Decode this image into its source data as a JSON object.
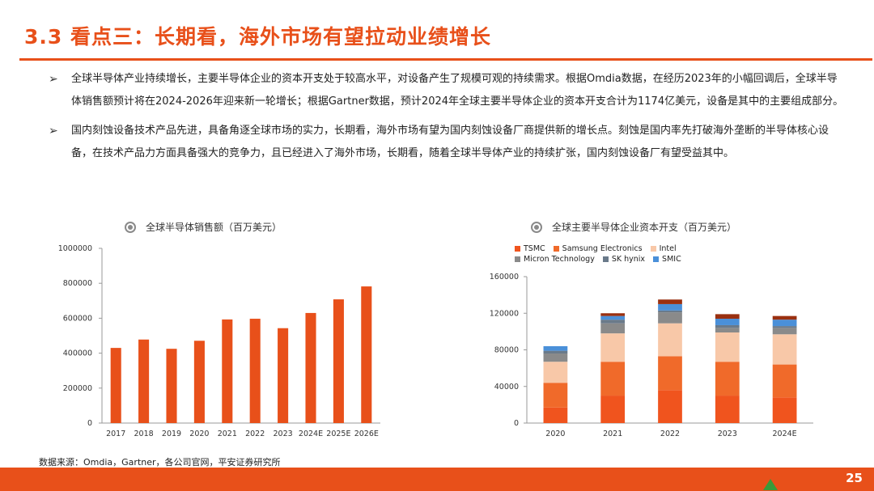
{
  "page": {
    "title": "3.3 看点三：长期看，海外市场有望拉动业绩增长",
    "page_number": "25",
    "source": "数据来源：Omdia，Gartner，各公司官网，平安证券研究所"
  },
  "bullets": [
    {
      "marker": "➢",
      "text": "全球半导体产业持续增长，主要半导体企业的资本开支处于较高水平，对设备产生了规模可观的持续需求。根据Omdia数据，在经历2023年的小幅回调后，全球半导体销售额预计将在2024-2026年迎来新一轮增长；根据Gartner数据，预计2024年全球主要半导体企业的资本开支合计为1174亿美元，设备是其中的主要组成部分。"
    },
    {
      "marker": "➢",
      "text": "国内刻蚀设备技术产品先进，具备角逐全球市场的实力，长期看，海外市场有望为国内刻蚀设备厂商提供新的增长点。刻蚀是国内率先打破海外垄断的半导体核心设备，在技术产品力方面具备强大的竞争力，且已经进入了海外市场，长期看，随着全球半导体产业的持续扩张，国内刻蚀设备厂有望受益其中。"
    }
  ],
  "colors": {
    "accent": "#e8501a",
    "TSMC": "#f0541e",
    "Samsung Electronics": "#f06a2a",
    "Intel": "#f8c8a8",
    "Micron Technology": "#8a8a8a",
    "SK hynix": "#6a7a8a",
    "SMIC": "#4a90d9",
    "extra": "#9a3010"
  },
  "chart_data": [
    {
      "type": "bar",
      "title": "全球半导体销售额（百万美元）",
      "categories": [
        "2017",
        "2018",
        "2019",
        "2020",
        "2021",
        "2022",
        "2023",
        "2024E",
        "2025E",
        "2026E"
      ],
      "values": [
        430000,
        478000,
        425000,
        471000,
        593000,
        597000,
        543000,
        630000,
        708000,
        782000
      ],
      "ylim": [
        0,
        1000000
      ],
      "yticks": [
        "0",
        "200000",
        "400000",
        "600000",
        "800000",
        "1000000"
      ],
      "grid": false
    },
    {
      "type": "bar",
      "stacked": true,
      "title": "全球主要半导体企业资本开支（百万美元）",
      "categories": [
        "2020",
        "2021",
        "2022",
        "2023",
        "2024E"
      ],
      "ylim": [
        0,
        160000
      ],
      "yticks": [
        "0",
        "40000",
        "80000",
        "120000",
        "160000"
      ],
      "legend_position": "top-left",
      "series": [
        {
          "name": "TSMC",
          "values": [
            17000,
            30000,
            36000,
            30000,
            28000
          ]
        },
        {
          "name": "Samsung Electronics",
          "values": [
            27000,
            37000,
            37000,
            37000,
            36000
          ]
        },
        {
          "name": "Intel",
          "values": [
            23000,
            31000,
            36000,
            32000,
            33000
          ]
        },
        {
          "name": "Micron Technology",
          "values": [
            9000,
            11000,
            12000,
            5000,
            7000
          ]
        },
        {
          "name": "SK hynix",
          "values": [
            3000,
            4000,
            2000,
            3000,
            2000
          ]
        },
        {
          "name": "SMIC",
          "values": [
            5000,
            4000,
            7000,
            7000,
            7000
          ]
        },
        {
          "name": "",
          "values": [
            0,
            3000,
            5000,
            5000,
            4000
          ]
        }
      ]
    }
  ]
}
